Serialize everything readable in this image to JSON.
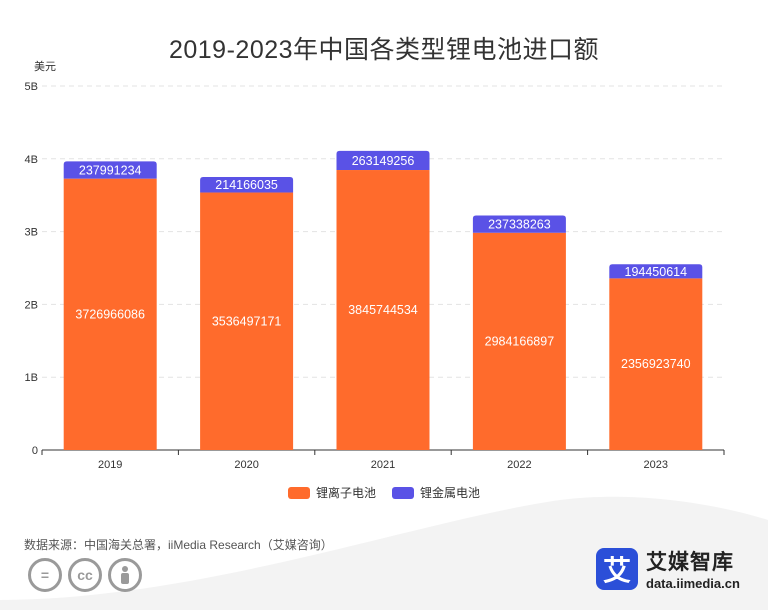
{
  "title": "2019-2023年中国各类型锂电池进口额",
  "unit": "美元",
  "source": "数据来源：中国海关总署，iiMedia Research（艾媒咨询）",
  "brand": {
    "name": "艾媒智库",
    "url": "data.iimedia.cn",
    "logo_char": "艾"
  },
  "cc_icons": [
    "=",
    "cc",
    "person"
  ],
  "colors": {
    "series1": "#FF6B2C",
    "series2": "#5A52E6",
    "grid": "#e3e3e3",
    "axis": "#333333",
    "wave": "#eeeeee"
  },
  "chart_data": {
    "type": "bar",
    "stacked": true,
    "categories": [
      "2019",
      "2020",
      "2021",
      "2022",
      "2023"
    ],
    "series": [
      {
        "name": "锂离子电池",
        "values": [
          3726966086,
          3536497171,
          3845744534,
          2984166897,
          2356923740
        ]
      },
      {
        "name": "锂金属电池",
        "values": [
          237991234,
          214166035,
          263149256,
          237338263,
          194450614
        ]
      }
    ],
    "ylim": [
      0,
      5000000000
    ],
    "yticks": [
      0,
      1000000000,
      2000000000,
      3000000000,
      4000000000,
      5000000000
    ],
    "ytick_labels": [
      "0",
      "1B",
      "2B",
      "3B",
      "4B",
      "5B"
    ],
    "ylabel": "美元",
    "grid": true,
    "legend_position": "bottom"
  }
}
